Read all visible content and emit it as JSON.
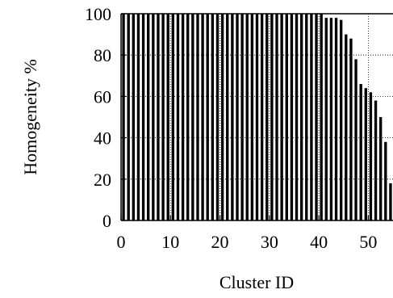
{
  "chart_data": {
    "type": "bar",
    "xlabel": "Cluster ID",
    "ylabel": "Homogeneity %",
    "xlim": [
      0,
      55
    ],
    "ylim": [
      0,
      100
    ],
    "xticks": [
      "0",
      "10",
      "20",
      "30",
      "40",
      "50"
    ],
    "yticks": [
      "0",
      "20",
      "40",
      "60",
      "80",
      "100"
    ],
    "grid": "dotted",
    "bar_fill": "#000000",
    "categories": [
      "0",
      "1",
      "2",
      "3",
      "4",
      "5",
      "6",
      "7",
      "8",
      "9",
      "10",
      "11",
      "12",
      "13",
      "14",
      "15",
      "16",
      "17",
      "18",
      "19",
      "20",
      "21",
      "22",
      "23",
      "24",
      "25",
      "26",
      "27",
      "28",
      "29",
      "30",
      "31",
      "32",
      "33",
      "34",
      "35",
      "36",
      "37",
      "38",
      "39",
      "40",
      "41",
      "42",
      "43",
      "44",
      "45",
      "46",
      "47",
      "48",
      "49",
      "50",
      "51",
      "52",
      "53",
      "54"
    ],
    "values": [
      100,
      100,
      100,
      100,
      100,
      100,
      100,
      100,
      100,
      100,
      100,
      100,
      100,
      100,
      100,
      100,
      100,
      100,
      100,
      100,
      100,
      100,
      100,
      100,
      100,
      100,
      100,
      100,
      100,
      100,
      100,
      100,
      100,
      100,
      100,
      100,
      100,
      100,
      100,
      100,
      100,
      98,
      98,
      98,
      97,
      90,
      88,
      78,
      66,
      64,
      62,
      58,
      50,
      38,
      18
    ]
  }
}
